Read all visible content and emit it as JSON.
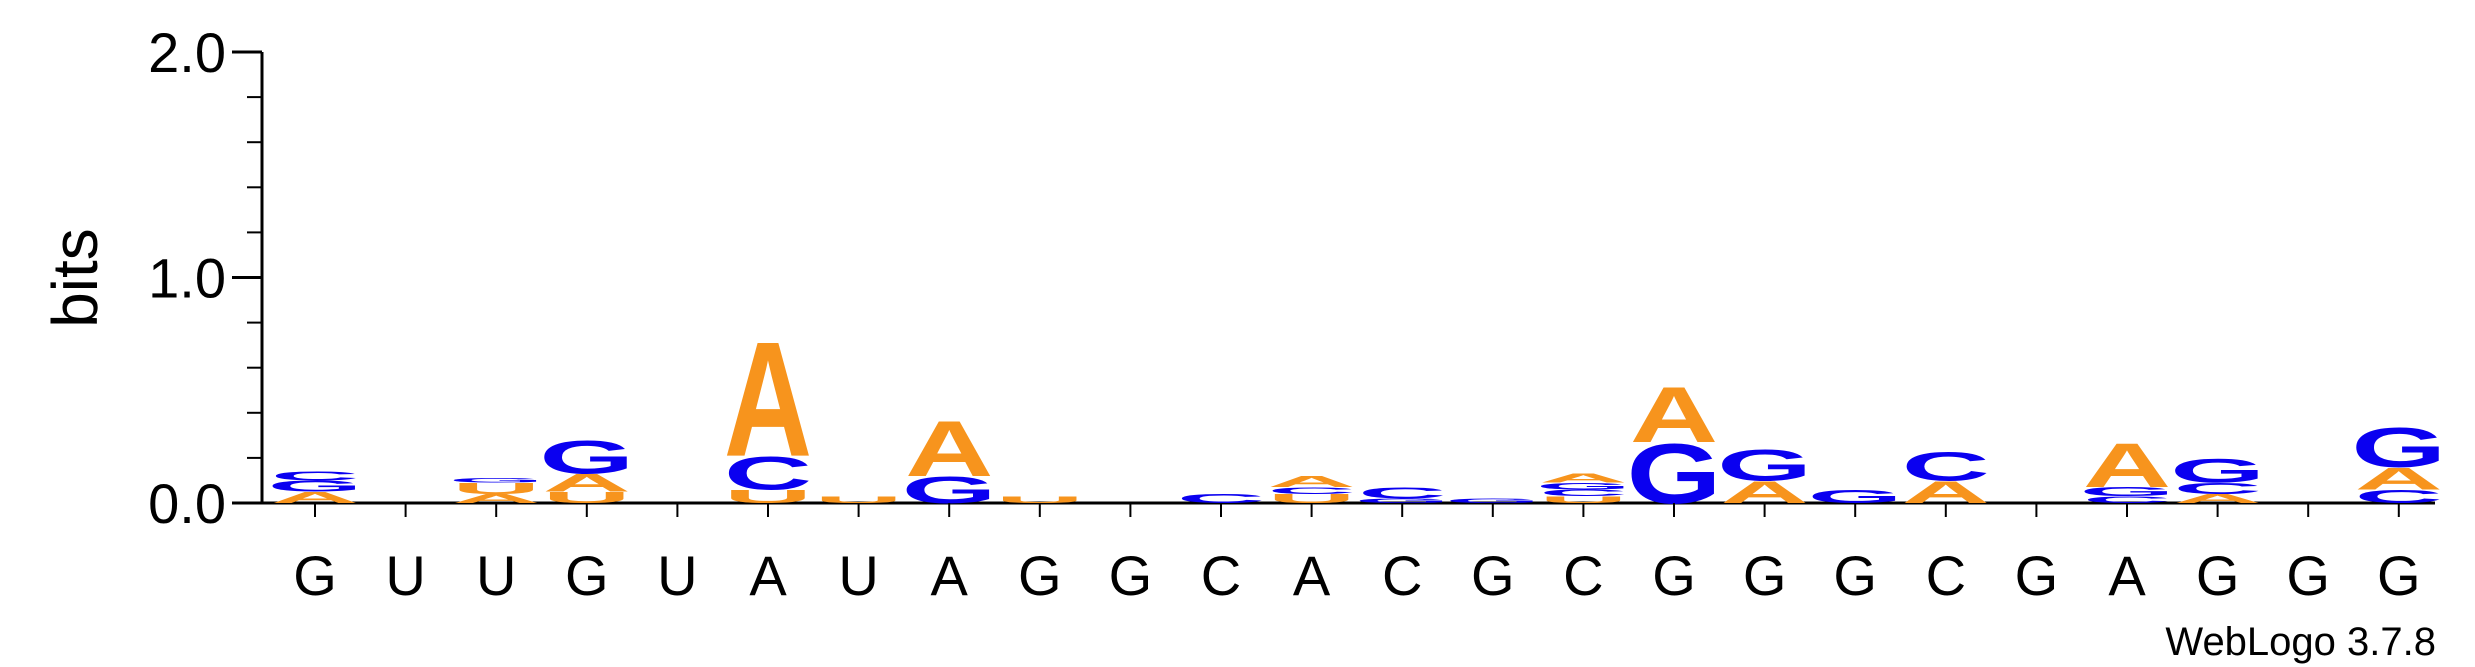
{
  "chart_data": {
    "type": "sequence-logo",
    "ylabel": "bits",
    "ylim": [
      0,
      2.0
    ],
    "yticks": [
      "0.0",
      "1.0",
      "2.0"
    ],
    "colors": {
      "A": "#f7941d",
      "C": "#0a00f0",
      "G": "#0a00f0",
      "U": "#f7941d"
    },
    "credit": "WebLogo 3.7.8",
    "positions": [
      {
        "label": "G",
        "stack": [
          [
            "A",
            0.05
          ],
          [
            "G",
            0.05
          ],
          [
            "C",
            0.04
          ]
        ]
      },
      {
        "label": "U",
        "stack": []
      },
      {
        "label": "U",
        "stack": [
          [
            "A",
            0.04
          ],
          [
            "U",
            0.05
          ],
          [
            "G",
            0.02
          ]
        ]
      },
      {
        "label": "G",
        "stack": [
          [
            "U",
            0.05
          ],
          [
            "A",
            0.08
          ],
          [
            "G",
            0.15
          ]
        ]
      },
      {
        "label": "U",
        "stack": []
      },
      {
        "label": "A",
        "stack": [
          [
            "U",
            0.06
          ],
          [
            "C",
            0.15
          ],
          [
            "A",
            0.52
          ]
        ]
      },
      {
        "label": "U",
        "stack": [
          [
            "U",
            0.03
          ]
        ]
      },
      {
        "label": "A",
        "stack": [
          [
            "G",
            0.12
          ],
          [
            "A",
            0.25
          ]
        ]
      },
      {
        "label": "G",
        "stack": [
          [
            "U",
            0.03
          ]
        ]
      },
      {
        "label": "G",
        "stack": []
      },
      {
        "label": "C",
        "stack": [
          [
            "C",
            0.04
          ]
        ]
      },
      {
        "label": "A",
        "stack": [
          [
            "U",
            0.04
          ],
          [
            "C",
            0.03
          ],
          [
            "A",
            0.05
          ]
        ]
      },
      {
        "label": "C",
        "stack": [
          [
            "G",
            0.02
          ],
          [
            "C",
            0.05
          ]
        ]
      },
      {
        "label": "G",
        "stack": [
          [
            "G",
            0.02
          ]
        ]
      },
      {
        "label": "C",
        "stack": [
          [
            "U",
            0.03
          ],
          [
            "C",
            0.03
          ],
          [
            "G",
            0.03
          ],
          [
            "A",
            0.04
          ]
        ]
      },
      {
        "label": "G",
        "stack": [
          [
            "G",
            0.27
          ],
          [
            "A",
            0.25
          ]
        ]
      },
      {
        "label": "G",
        "stack": [
          [
            "A",
            0.1
          ],
          [
            "G",
            0.14
          ]
        ]
      },
      {
        "label": "G",
        "stack": [
          [
            "G",
            0.06
          ]
        ]
      },
      {
        "label": "C",
        "stack": [
          [
            "A",
            0.1
          ],
          [
            "C",
            0.13
          ]
        ]
      },
      {
        "label": "G",
        "stack": []
      },
      {
        "label": "A",
        "stack": [
          [
            "C",
            0.03
          ],
          [
            "G",
            0.04
          ],
          [
            "A",
            0.2
          ]
        ]
      },
      {
        "label": "G",
        "stack": [
          [
            "A",
            0.04
          ],
          [
            "C",
            0.05
          ],
          [
            "G",
            0.11
          ]
        ]
      },
      {
        "label": "G",
        "stack": []
      },
      {
        "label": "G",
        "stack": [
          [
            "C",
            0.06
          ],
          [
            "A",
            0.1
          ],
          [
            "G",
            0.18
          ]
        ]
      }
    ]
  }
}
